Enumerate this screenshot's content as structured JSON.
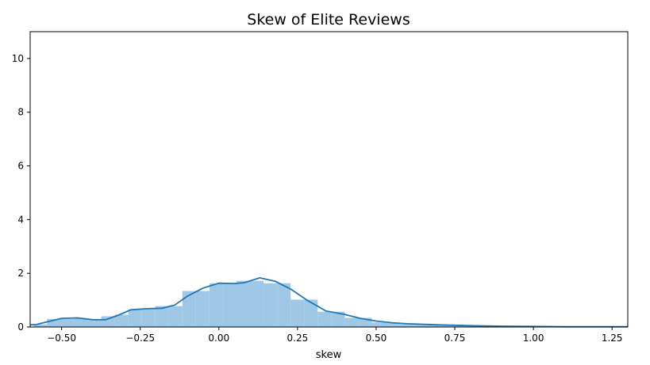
{
  "chart_data": {
    "type": "bar",
    "title": "Skew of Elite Reviews",
    "xlabel": "skew",
    "ylabel": "",
    "xlim": [
      -0.6,
      1.3
    ],
    "ylim": [
      0,
      11
    ],
    "grid": false,
    "x_ticks": [
      -0.5,
      -0.25,
      0.0,
      0.25,
      0.5,
      0.75,
      1.0,
      1.25
    ],
    "x_tick_labels": [
      "−0.50",
      "−0.25",
      "0.00",
      "0.25",
      "0.50",
      "0.75",
      "1.00",
      "1.25"
    ],
    "y_ticks": [
      0,
      2,
      4,
      6,
      8,
      10
    ],
    "y_tick_labels": [
      "0",
      "2",
      "4",
      "6",
      "8",
      "10"
    ],
    "histogram": {
      "bin_width": 0.043,
      "bar_color": "#9ec8e5",
      "bins": [
        {
          "x0": -0.589,
          "height": 0.1
        },
        {
          "x0": -0.546,
          "height": 0.3
        },
        {
          "x0": -0.503,
          "height": 0.3
        },
        {
          "x0": -0.46,
          "height": 0.33
        },
        {
          "x0": -0.417,
          "height": 0.27
        },
        {
          "x0": -0.374,
          "height": 0.4
        },
        {
          "x0": -0.331,
          "height": 0.46
        },
        {
          "x0": -0.288,
          "height": 0.65
        },
        {
          "x0": -0.245,
          "height": 0.68
        },
        {
          "x0": -0.202,
          "height": 0.78
        },
        {
          "x0": -0.159,
          "height": 0.78
        },
        {
          "x0": -0.116,
          "height": 1.34
        },
        {
          "x0": -0.073,
          "height": 1.34
        },
        {
          "x0": -0.03,
          "height": 1.62
        },
        {
          "x0": 0.013,
          "height": 1.62
        },
        {
          "x0": 0.056,
          "height": 1.72
        },
        {
          "x0": 0.099,
          "height": 1.72
        },
        {
          "x0": 0.142,
          "height": 1.63
        },
        {
          "x0": 0.185,
          "height": 1.63
        },
        {
          "x0": 0.228,
          "height": 1.02
        },
        {
          "x0": 0.271,
          "height": 1.02
        },
        {
          "x0": 0.314,
          "height": 0.57
        },
        {
          "x0": 0.357,
          "height": 0.57
        },
        {
          "x0": 0.4,
          "height": 0.34
        },
        {
          "x0": 0.443,
          "height": 0.34
        },
        {
          "x0": 0.486,
          "height": 0.17
        },
        {
          "x0": 0.529,
          "height": 0.15
        },
        {
          "x0": 0.572,
          "height": 0.11
        },
        {
          "x0": 0.615,
          "height": 0.09
        },
        {
          "x0": 0.658,
          "height": 0.08
        },
        {
          "x0": 0.701,
          "height": 0.06
        },
        {
          "x0": 0.744,
          "height": 0.05
        },
        {
          "x0": 0.787,
          "height": 0.04
        },
        {
          "x0": 0.83,
          "height": 0.04
        },
        {
          "x0": 0.873,
          "height": 0.03
        },
        {
          "x0": 0.916,
          "height": 0.02
        },
        {
          "x0": 0.959,
          "height": 0.02
        },
        {
          "x0": 1.002,
          "height": 0.02
        },
        {
          "x0": 1.045,
          "height": 0.01
        },
        {
          "x0": 1.088,
          "height": 0.01
        },
        {
          "x0": 1.131,
          "height": 0.01
        },
        {
          "x0": 1.174,
          "height": 0.01
        },
        {
          "x0": 1.217,
          "height": 0.01
        },
        {
          "x0": 1.26,
          "height": 0.01
        }
      ]
    },
    "kde": {
      "line_color": "#1f77b4",
      "x": [
        -0.6,
        -0.58,
        -0.55,
        -0.5,
        -0.45,
        -0.4,
        -0.36,
        -0.32,
        -0.28,
        -0.23,
        -0.18,
        -0.14,
        -0.1,
        -0.05,
        0.0,
        0.05,
        0.08,
        0.13,
        0.18,
        0.23,
        0.28,
        0.34,
        0.4,
        0.45,
        0.5,
        0.55,
        0.6,
        0.7,
        0.8,
        0.9,
        1.0,
        1.1,
        1.2,
        1.3
      ],
      "y": [
        0.08,
        0.09,
        0.18,
        0.32,
        0.34,
        0.27,
        0.27,
        0.44,
        0.64,
        0.68,
        0.7,
        0.82,
        1.15,
        1.45,
        1.63,
        1.62,
        1.65,
        1.83,
        1.7,
        1.4,
        1.0,
        0.6,
        0.47,
        0.32,
        0.22,
        0.16,
        0.12,
        0.08,
        0.05,
        0.03,
        0.02,
        0.01,
        0.01,
        0.01
      ]
    }
  }
}
